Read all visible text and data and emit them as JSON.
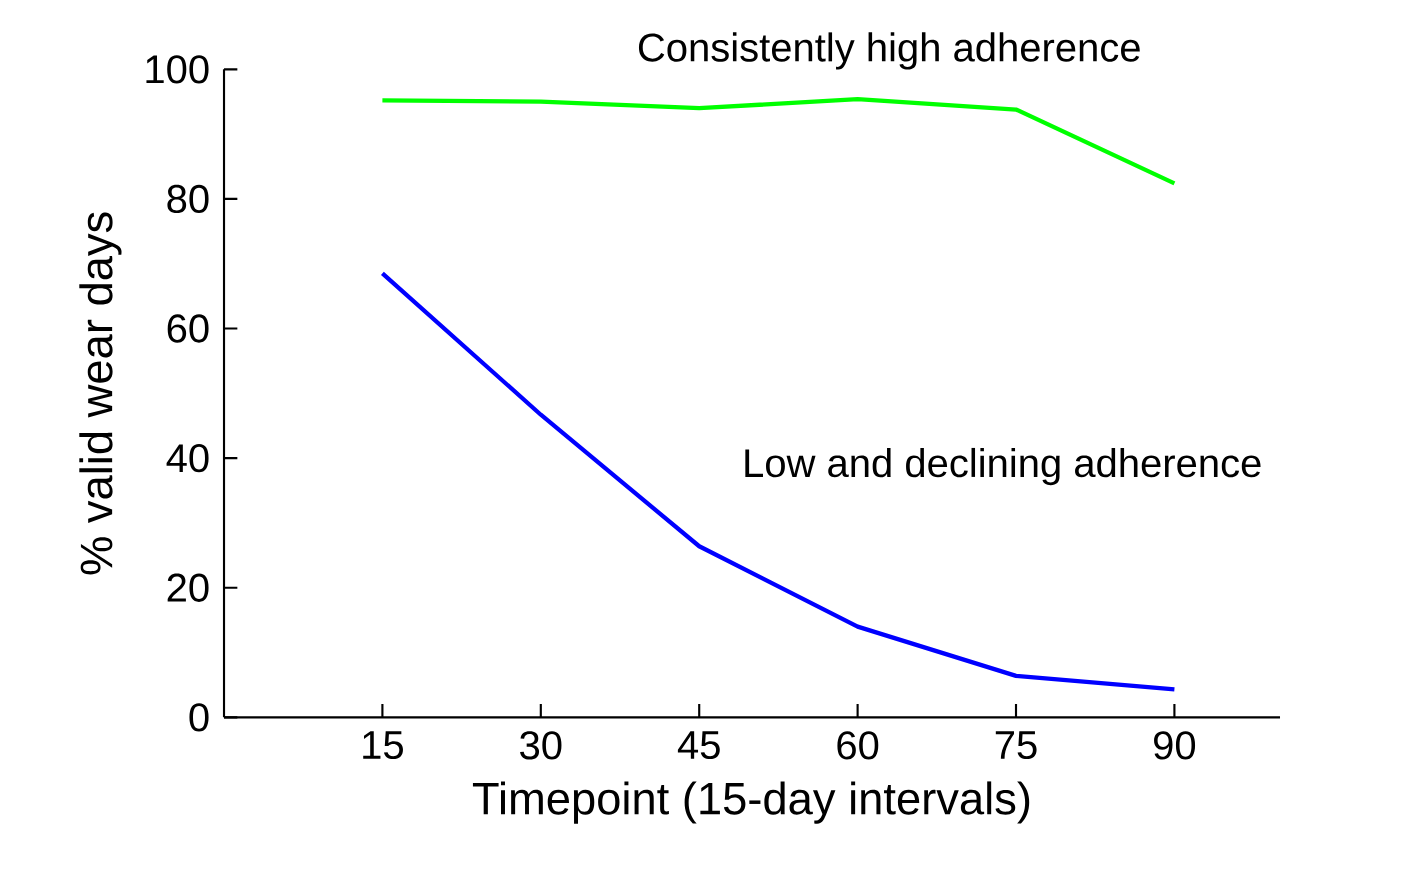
{
  "chart_data": {
    "type": "line",
    "xlabel": "Timepoint (15-day intervals)",
    "ylabel": "% valid wear days",
    "x": [
      15,
      30,
      45,
      60,
      75,
      90
    ],
    "series": [
      {
        "name": "Consistently high adherence",
        "color": "#00ff00",
        "values": [
          95.2,
          95.0,
          94.0,
          95.4,
          93.8,
          82.4
        ]
      },
      {
        "name": "Low and declining adherence",
        "color": "#0000ff",
        "values": [
          68.5,
          46.7,
          26.4,
          14.0,
          6.4,
          4.3
        ]
      }
    ],
    "xlim": [
      0,
      100
    ],
    "ylim": [
      0,
      100
    ],
    "xticks": [
      15,
      30,
      45,
      60,
      75,
      90
    ],
    "yticks": [
      0,
      20,
      40,
      60,
      80,
      100
    ],
    "grid": false,
    "legend": false,
    "marker": "none"
  }
}
